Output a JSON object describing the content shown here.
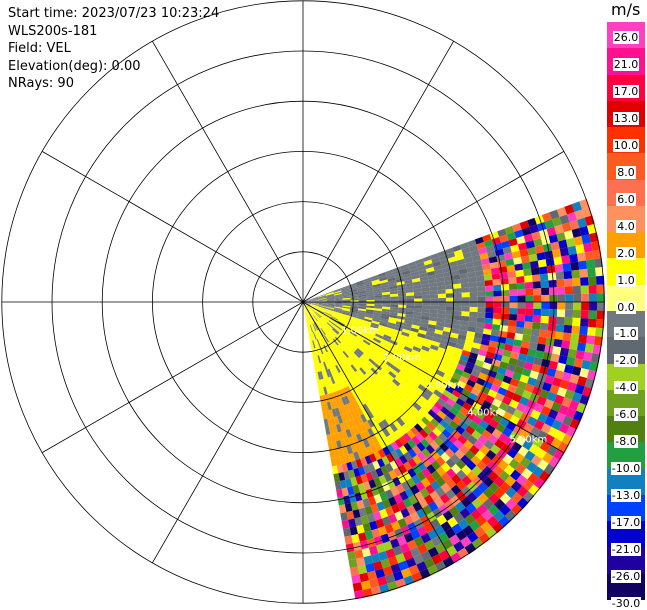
{
  "header": {
    "start_time": "Start time: 2023/07/23 10:23:24",
    "instrument": "WLS200s-181",
    "field": "Field: VEL",
    "elevation": "Elevation(deg): 0.00",
    "nrays": "NRays: 90"
  },
  "colorbar": {
    "unit": "m/s",
    "ticks": [
      "26.0",
      "21.0",
      "17.0",
      "13.0",
      "10.0",
      "8.0",
      "6.0",
      "4.0",
      "2.0",
      "1.0",
      "0.0",
      "-1.0",
      "-2.0",
      "-4.0",
      "-6.0",
      "-8.0",
      "-10.0",
      "-13.0",
      "-17.0",
      "-21.0",
      "-26.0",
      "-30.0"
    ],
    "colors": [
      "#ff40c0",
      "#ff1090",
      "#ff0040",
      "#e00000",
      "#ff3000",
      "#ff5a20",
      "#ff7050",
      "#ff9060",
      "#ffa000",
      "#ffff00",
      "#ffff80",
      "#707880",
      "#606870",
      "#a0d020",
      "#70a020",
      "#508010",
      "#20a040",
      "#1080c0",
      "#0040ff",
      "#0000d0",
      "#2000a0",
      "#100060"
    ]
  },
  "range_labels": [
    "1.00km",
    "2.00km",
    "3.00km",
    "4.00km",
    "5.00km"
  ]
}
